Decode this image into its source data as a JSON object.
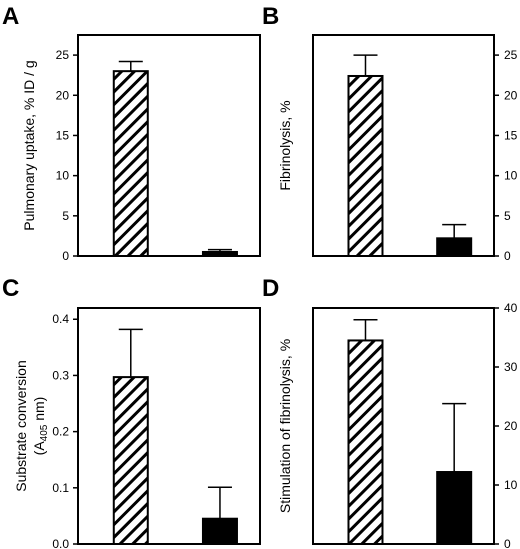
{
  "chart_data": [
    {
      "panel": "A",
      "type": "bar",
      "ylabel": "Pulmonary uptake, % ID / g",
      "ylim": [
        0,
        27.5
      ],
      "yticks": [
        0,
        5,
        10,
        15,
        20,
        25
      ],
      "y_axis_side": "left",
      "bars": [
        {
          "value": 23.0,
          "error": 1.2,
          "fill": "hatched"
        },
        {
          "value": 0.5,
          "error": 0.3,
          "fill": "solid"
        }
      ]
    },
    {
      "panel": "B",
      "type": "bar",
      "ylabel": "Fibrinolysis, %",
      "ylim": [
        0,
        27.5
      ],
      "yticks": [
        0,
        5,
        10,
        15,
        20,
        25
      ],
      "y_axis_side": "right",
      "bars": [
        {
          "value": 22.4,
          "error": 2.6,
          "fill": "hatched"
        },
        {
          "value": 2.2,
          "error": 1.7,
          "fill": "solid"
        }
      ]
    },
    {
      "panel": "C",
      "type": "bar",
      "ylabel": "Substrate conversion",
      "ylabel_line2": "(A",
      "ylabel_sub": "405",
      "ylabel_line2_end": " nm)",
      "ylim": [
        0,
        0.42
      ],
      "yticks": [
        0,
        0.1,
        0.2,
        0.3,
        0.4
      ],
      "ytick_labels": [
        "0.0",
        "0.1",
        "0.2",
        "0.3",
        "0.4"
      ],
      "y_axis_side": "left",
      "bars": [
        {
          "value": 0.297,
          "error": 0.085,
          "fill": "hatched"
        },
        {
          "value": 0.045,
          "error": 0.056,
          "fill": "solid"
        }
      ]
    },
    {
      "panel": "D",
      "type": "bar",
      "ylabel": "Stimulation of fibrinolysis, %",
      "ylim": [
        0,
        40
      ],
      "yticks": [
        0,
        10,
        20,
        30,
        40
      ],
      "y_axis_side": "right",
      "bars": [
        {
          "value": 34.5,
          "error": 3.5,
          "fill": "hatched"
        },
        {
          "value": 12.2,
          "error": 11.6,
          "fill": "solid"
        }
      ]
    }
  ]
}
